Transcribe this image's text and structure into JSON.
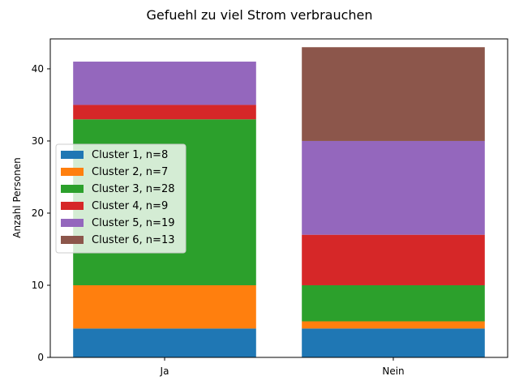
{
  "chart_data": {
    "type": "bar",
    "stacked": true,
    "title": "Gefuehl zu viel Strom verbrauchen",
    "xlabel": "",
    "ylabel": "Anzahl Personen",
    "categories": [
      "Ja",
      "Nein"
    ],
    "ylim": [
      0,
      44.15
    ],
    "yticks": [
      0,
      10,
      20,
      30,
      40
    ],
    "grid": false,
    "legend_position": "center-left",
    "series": [
      {
        "name": "Cluster 1, n=8",
        "color": "#1f77b4",
        "values": [
          4,
          4
        ]
      },
      {
        "name": "Cluster 2, n=7",
        "color": "#ff7f0e",
        "values": [
          6,
          1
        ]
      },
      {
        "name": "Cluster 3, n=28",
        "color": "#2ca02c",
        "values": [
          23,
          5
        ]
      },
      {
        "name": "Cluster 4, n=9",
        "color": "#d62728",
        "values": [
          2,
          7
        ]
      },
      {
        "name": "Cluster 5, n=19",
        "color": "#9467bd",
        "values": [
          6,
          13
        ]
      },
      {
        "name": "Cluster 6, n=13",
        "color": "#8c564b",
        "values": [
          0,
          13
        ]
      }
    ]
  }
}
